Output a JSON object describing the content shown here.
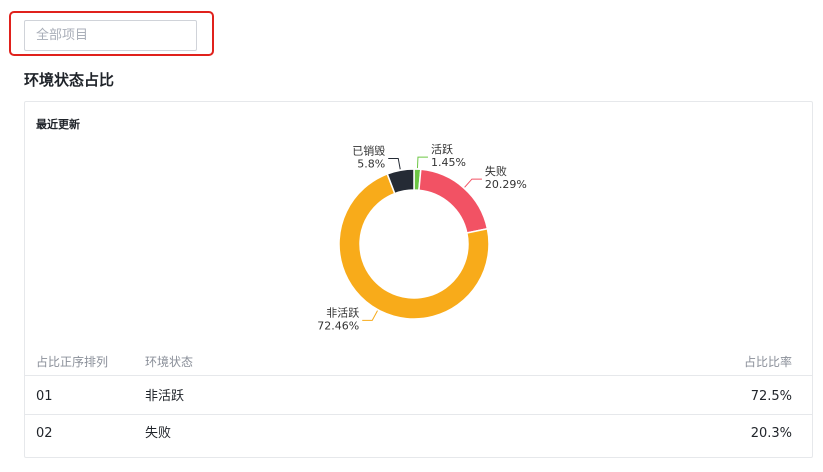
{
  "filter": {
    "project_select_placeholder": "全部项目"
  },
  "section": {
    "title": "环境状态占比"
  },
  "card": {
    "subtitle": "最近更新"
  },
  "chart_data": {
    "type": "pie",
    "donut": true,
    "slices": [
      {
        "label": "活跃",
        "value": 1.45,
        "display": "1.45%",
        "color": "#6cc644"
      },
      {
        "label": "失败",
        "value": 20.29,
        "display": "20.29%",
        "color": "#f25264"
      },
      {
        "label": "非活跃",
        "value": 72.46,
        "display": "72.46%",
        "color": "#f8ab1a"
      },
      {
        "label": "已销毁",
        "value": 5.8,
        "display": "5.8%",
        "color": "#252b35"
      }
    ]
  },
  "table": {
    "headers": {
      "rank": "占比正序排列",
      "status": "环境状态",
      "ratio": "占比比率"
    },
    "rows": [
      {
        "rank": "01",
        "status": "非活跃",
        "ratio": "72.5%"
      },
      {
        "rank": "02",
        "status": "失败",
        "ratio": "20.3%"
      }
    ]
  }
}
